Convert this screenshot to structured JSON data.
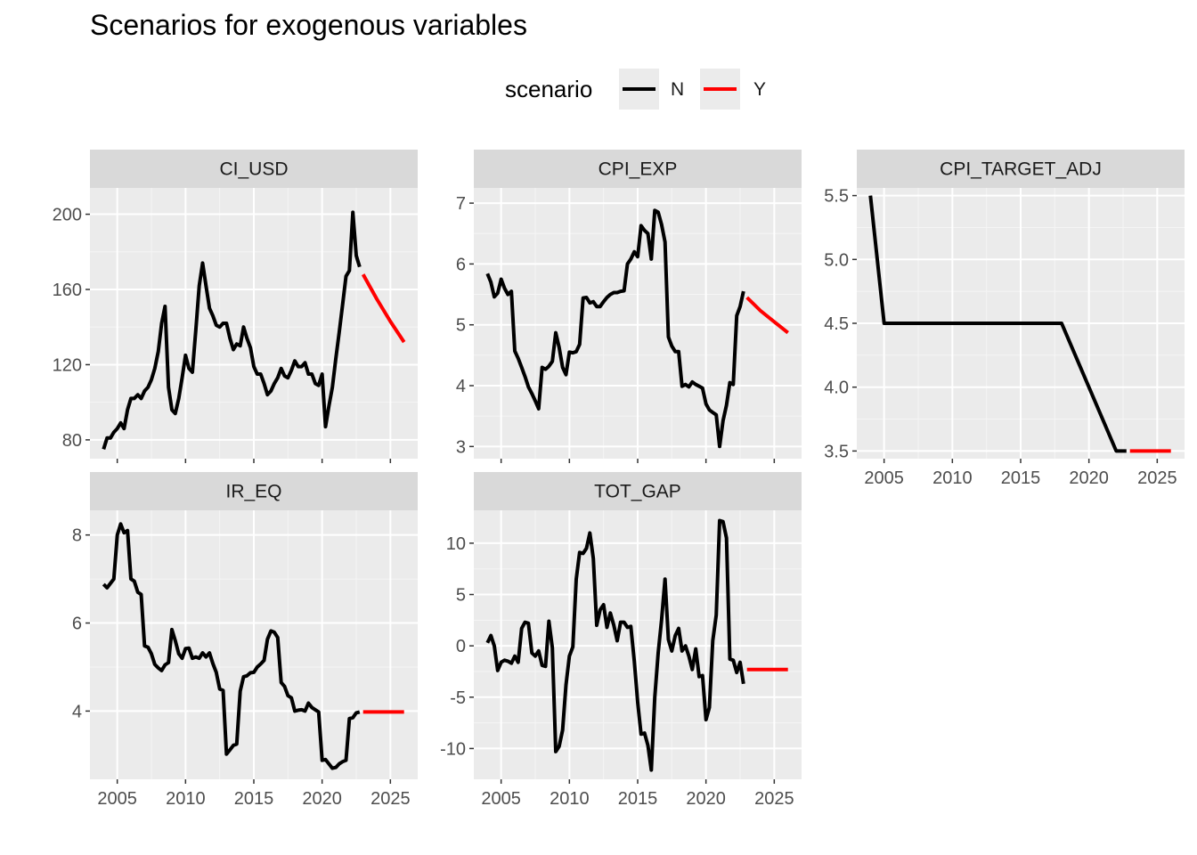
{
  "colors": {
    "panel_bg": "#EBEBEB",
    "strip_bg": "#D9D9D9",
    "grid_major": "#FFFFFF",
    "grid_minor": "#F5F5F5",
    "tick": "#333333",
    "series_N": "#000000",
    "series_Y": "#FF0000"
  },
  "chart_data": {
    "type": "line",
    "title": "Scenarios for exogenous variables",
    "legend": {
      "title": "scenario",
      "position": "top",
      "entries": [
        {
          "name": "N",
          "color": "#000000"
        },
        {
          "name": "Y",
          "color": "#FF0000"
        }
      ]
    },
    "grid": true,
    "xlim": [
      2003.0,
      2027.0
    ],
    "x_ticks": [
      2005,
      2010,
      2015,
      2020,
      2025
    ],
    "x_tick_labels": [
      "2005",
      "2010",
      "2015",
      "2020",
      "2025"
    ],
    "panels": [
      {
        "name": "CI_USD",
        "ylim": [
          70,
          214
        ],
        "y_ticks": [
          80,
          120,
          160,
          200
        ],
        "y_tick_labels": [
          "80",
          "120",
          "160",
          "200"
        ],
        "series": [
          {
            "name": "N",
            "x": [
              2004.0,
              2004.25,
              2004.5,
              2004.75,
              2005.0,
              2005.25,
              2005.5,
              2005.75,
              2006.0,
              2006.25,
              2006.5,
              2006.75,
              2007.0,
              2007.25,
              2007.5,
              2007.75,
              2008.0,
              2008.25,
              2008.5,
              2008.75,
              2009.0,
              2009.25,
              2009.5,
              2009.75,
              2010.0,
              2010.25,
              2010.5,
              2010.75,
              2011.0,
              2011.25,
              2011.5,
              2011.75,
              2012.0,
              2012.25,
              2012.5,
              2012.75,
              2013.0,
              2013.25,
              2013.5,
              2013.75,
              2014.0,
              2014.25,
              2014.5,
              2014.75,
              2015.0,
              2015.25,
              2015.5,
              2015.75,
              2016.0,
              2016.25,
              2016.5,
              2016.75,
              2017.0,
              2017.25,
              2017.5,
              2017.75,
              2018.0,
              2018.25,
              2018.5,
              2018.75,
              2019.0,
              2019.25,
              2019.5,
              2019.75,
              2020.0,
              2020.25,
              2020.5,
              2020.75,
              2021.0,
              2021.25,
              2021.5,
              2021.75,
              2022.0,
              2022.25,
              2022.5,
              2022.75
            ],
            "y": [
              75,
              81,
              81,
              84,
              86,
              89,
              86,
              96,
              102,
              102,
              104,
              102,
              106,
              108,
              112,
              118,
              127,
              142,
              151,
              108,
              96,
              94,
              102,
              113,
              125,
              118,
              116,
              138,
              162,
              174,
              162,
              150,
              146,
              141,
              140,
              142,
              142,
              134,
              128,
              131,
              130,
              140,
              134,
              129,
              119,
              115,
              115,
              110,
              104,
              106,
              110,
              113,
              118,
              114,
              113,
              117,
              122,
              119,
              119,
              121,
              115,
              115,
              110,
              109,
              115,
              87,
              98,
              108,
              123,
              137,
              152,
              167,
              170,
              201,
              178,
              172
            ]
          },
          {
            "name": "Y",
            "x": [
              2023.0,
              2024.0,
              2025.0,
              2026.0
            ],
            "y": [
              168,
              155,
              143,
              132
            ]
          }
        ]
      },
      {
        "name": "CPI_EXP",
        "ylim": [
          2.8,
          7.25
        ],
        "y_ticks": [
          3,
          4,
          5,
          6,
          7
        ],
        "y_tick_labels": [
          "3",
          "4",
          "5",
          "6",
          "7"
        ],
        "series": [
          {
            "name": "N",
            "x": [
              2004.0,
              2004.25,
              2004.5,
              2004.75,
              2005.0,
              2005.25,
              2005.5,
              2005.75,
              2006.0,
              2006.25,
              2006.5,
              2006.75,
              2007.0,
              2007.25,
              2007.5,
              2007.75,
              2008.0,
              2008.25,
              2008.5,
              2008.75,
              2009.0,
              2009.25,
              2009.5,
              2009.75,
              2010.0,
              2010.25,
              2010.5,
              2010.75,
              2011.0,
              2011.25,
              2011.5,
              2011.75,
              2012.0,
              2012.25,
              2012.5,
              2012.75,
              2013.0,
              2013.25,
              2013.5,
              2013.75,
              2014.0,
              2014.25,
              2014.5,
              2014.75,
              2015.0,
              2015.25,
              2015.5,
              2015.75,
              2016.0,
              2016.25,
              2016.5,
              2016.75,
              2017.0,
              2017.25,
              2017.5,
              2017.75,
              2018.0,
              2018.25,
              2018.5,
              2018.75,
              2019.0,
              2019.25,
              2019.5,
              2019.75,
              2020.0,
              2020.25,
              2020.5,
              2020.75,
              2021.0,
              2021.25,
              2021.5,
              2021.75,
              2022.0,
              2022.25,
              2022.5,
              2022.75
            ],
            "y": [
              5.84,
              5.7,
              5.46,
              5.52,
              5.75,
              5.6,
              5.5,
              5.55,
              4.57,
              4.45,
              4.3,
              4.15,
              3.98,
              3.87,
              3.75,
              3.62,
              4.3,
              4.27,
              4.32,
              4.4,
              4.87,
              4.63,
              4.3,
              4.18,
              4.55,
              4.54,
              4.56,
              4.68,
              5.44,
              5.45,
              5.36,
              5.38,
              5.3,
              5.3,
              5.38,
              5.45,
              5.5,
              5.53,
              5.53,
              5.55,
              5.56,
              6.0,
              6.08,
              6.2,
              6.12,
              6.63,
              6.55,
              6.5,
              6.08,
              6.88,
              6.85,
              6.65,
              6.36,
              4.8,
              4.65,
              4.56,
              4.56,
              3.99,
              4.02,
              3.98,
              4.06,
              4.02,
              3.99,
              3.96,
              3.7,
              3.6,
              3.56,
              3.52,
              3.0,
              3.42,
              3.68,
              4.05,
              4.02,
              5.15,
              5.3,
              5.55
            ]
          },
          {
            "name": "Y",
            "x": [
              2023.0,
              2024.0,
              2025.0,
              2026.0
            ],
            "y": [
              5.45,
              5.23,
              5.05,
              4.87
            ]
          }
        ]
      },
      {
        "name": "CPI_TARGET_ADJ",
        "ylim": [
          3.44,
          5.56
        ],
        "y_ticks": [
          3.5,
          4.0,
          4.5,
          5.0,
          5.5
        ],
        "y_tick_labels": [
          "3.5",
          "4.0",
          "4.5",
          "5.0",
          "5.5"
        ],
        "series": [
          {
            "name": "N",
            "x": [
              2004.0,
              2005.0,
              2018.0,
              2022.0,
              2022.75
            ],
            "y": [
              5.5,
              4.5,
              4.5,
              3.5,
              3.5
            ]
          },
          {
            "name": "Y",
            "x": [
              2023.0,
              2026.0
            ],
            "y": [
              3.5,
              3.5
            ]
          }
        ]
      },
      {
        "name": "IR_EQ",
        "ylim": [
          2.45,
          8.56
        ],
        "y_ticks": [
          4,
          6,
          8
        ],
        "y_tick_labels": [
          "4",
          "6",
          "8"
        ],
        "series": [
          {
            "name": "N",
            "x": [
              2004.0,
              2004.25,
              2004.5,
              2004.75,
              2005.0,
              2005.25,
              2005.5,
              2005.75,
              2006.0,
              2006.25,
              2006.5,
              2006.75,
              2007.0,
              2007.25,
              2007.5,
              2007.75,
              2008.0,
              2008.25,
              2008.5,
              2008.75,
              2009.0,
              2009.25,
              2009.5,
              2009.75,
              2010.0,
              2010.25,
              2010.5,
              2010.75,
              2011.0,
              2011.25,
              2011.5,
              2011.75,
              2012.0,
              2012.25,
              2012.5,
              2012.75,
              2013.0,
              2013.25,
              2013.5,
              2013.75,
              2014.0,
              2014.25,
              2014.5,
              2014.75,
              2015.0,
              2015.25,
              2015.5,
              2015.75,
              2016.0,
              2016.25,
              2016.5,
              2016.75,
              2017.0,
              2017.25,
              2017.5,
              2017.75,
              2018.0,
              2018.25,
              2018.5,
              2018.75,
              2019.0,
              2019.25,
              2019.5,
              2019.75,
              2020.0,
              2020.25,
              2020.5,
              2020.75,
              2021.0,
              2021.25,
              2021.5,
              2021.75,
              2022.0,
              2022.25,
              2022.5,
              2022.75
            ],
            "y": [
              6.88,
              6.8,
              6.9,
              7.0,
              8.0,
              8.25,
              8.05,
              8.1,
              7.0,
              6.95,
              6.7,
              6.65,
              5.48,
              5.45,
              5.3,
              5.06,
              4.98,
              4.92,
              5.05,
              5.1,
              5.85,
              5.6,
              5.3,
              5.2,
              5.42,
              5.43,
              5.2,
              5.23,
              5.2,
              5.32,
              5.23,
              5.32,
              5.08,
              4.88,
              4.5,
              4.47,
              3.02,
              3.12,
              3.22,
              3.25,
              4.45,
              4.78,
              4.8,
              4.87,
              4.88,
              5.0,
              5.07,
              5.15,
              5.63,
              5.82,
              5.79,
              5.67,
              4.65,
              4.56,
              4.35,
              4.3,
              4.0,
              4.02,
              4.03,
              4.0,
              4.18,
              4.08,
              4.03,
              3.98,
              2.88,
              2.9,
              2.8,
              2.7,
              2.72,
              2.8,
              2.85,
              2.88,
              3.83,
              3.85,
              3.96,
              3.98
            ]
          },
          {
            "name": "Y",
            "x": [
              2023.0,
              2026.0
            ],
            "y": [
              3.98,
              3.98
            ]
          }
        ]
      },
      {
        "name": "TOT_GAP",
        "ylim": [
          -13.0,
          13.2
        ],
        "y_ticks": [
          -10,
          -5,
          0,
          5,
          10
        ],
        "y_tick_labels": [
          "-10",
          "-5",
          "0",
          "5",
          "10"
        ],
        "series": [
          {
            "name": "N",
            "x": [
              2004.0,
              2004.25,
              2004.5,
              2004.75,
              2005.0,
              2005.25,
              2005.5,
              2005.75,
              2006.0,
              2006.25,
              2006.5,
              2006.75,
              2007.0,
              2007.25,
              2007.5,
              2007.75,
              2008.0,
              2008.25,
              2008.5,
              2008.75,
              2009.0,
              2009.25,
              2009.5,
              2009.75,
              2010.0,
              2010.25,
              2010.5,
              2010.75,
              2011.0,
              2011.25,
              2011.5,
              2011.75,
              2012.0,
              2012.25,
              2012.5,
              2012.75,
              2013.0,
              2013.25,
              2013.5,
              2013.75,
              2014.0,
              2014.25,
              2014.5,
              2014.75,
              2015.0,
              2015.25,
              2015.5,
              2015.75,
              2016.0,
              2016.25,
              2016.5,
              2016.75,
              2017.0,
              2017.25,
              2017.5,
              2017.75,
              2018.0,
              2018.25,
              2018.5,
              2018.75,
              2019.0,
              2019.25,
              2019.5,
              2019.75,
              2020.0,
              2020.25,
              2020.5,
              2020.75,
              2021.0,
              2021.25,
              2021.5,
              2021.75,
              2022.0,
              2022.25,
              2022.5,
              2022.75
            ],
            "y": [
              0.3,
              1.0,
              0.0,
              -2.4,
              -1.6,
              -1.4,
              -1.5,
              -1.7,
              -1.0,
              -1.6,
              1.7,
              2.3,
              2.2,
              -0.7,
              -1.0,
              -0.5,
              -1.9,
              -2.0,
              2.4,
              -0.2,
              -10.3,
              -9.8,
              -8.2,
              -3.8,
              -1.0,
              -0.1,
              6.5,
              9.1,
              9.0,
              9.5,
              11.0,
              8.5,
              2.0,
              3.5,
              4.0,
              1.8,
              3.2,
              2.0,
              0.5,
              2.3,
              2.3,
              1.8,
              1.9,
              -1.5,
              -5.5,
              -8.6,
              -8.5,
              -9.7,
              -12.1,
              -5.0,
              -0.7,
              2.5,
              6.5,
              0.6,
              -0.5,
              1.0,
              1.7,
              -0.5,
              0.0,
              -1.0,
              -2.3,
              -0.3,
              -3.0,
              -2.9,
              -7.2,
              -6.0,
              0.5,
              3.0,
              12.2,
              12.1,
              10.5,
              -1.3,
              -1.4,
              -2.6,
              -1.6,
              -3.7
            ]
          },
          {
            "name": "Y",
            "x": [
              2023.0,
              2026.0
            ],
            "y": [
              -2.3,
              -2.3
            ]
          }
        ]
      }
    ]
  }
}
